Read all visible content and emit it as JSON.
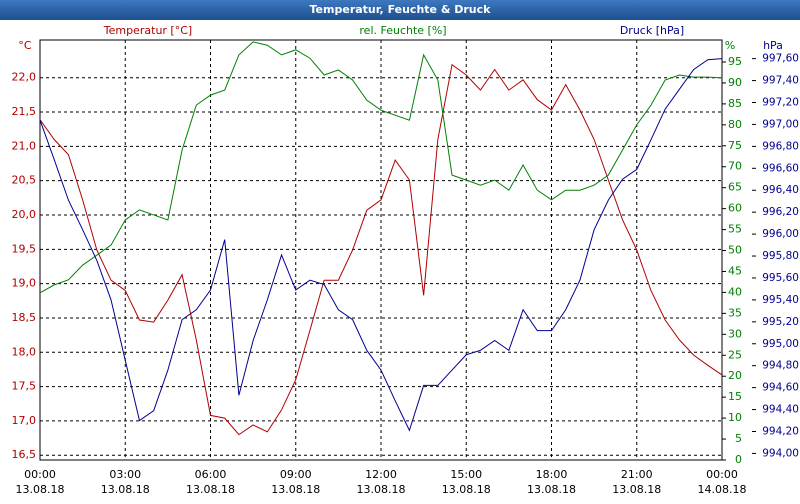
{
  "chart_data": {
    "type": "line",
    "title": "Temperatur, Feuchte & Druck",
    "y_unit": "°C",
    "y_label": "Temperatur [°C]",
    "y2_label": "rel. Feuchte [%]",
    "y2_unit": "%",
    "y3_label": "Druck [hPa]",
    "y3_unit": "hPa",
    "grid": true,
    "xlim": [
      0,
      24
    ],
    "xticks": [
      {
        "value": 0,
        "label": "00:00"
      },
      {
        "value": 3,
        "label": "03:00"
      },
      {
        "value": 6,
        "label": "06:00"
      },
      {
        "value": 9,
        "label": "09:00"
      },
      {
        "value": 12,
        "label": "12:00"
      },
      {
        "value": 15,
        "label": "15:00"
      },
      {
        "value": 18,
        "label": "18:00"
      },
      {
        "value": 21,
        "label": "21:00"
      },
      {
        "value": 24,
        "label": "00:00"
      }
    ],
    "xtick_dates": [
      "13.08.18",
      "13.08.18",
      "13.08.18",
      "13.08.18",
      "13.08.18",
      "13.08.18",
      "13.08.18",
      "13.08.18",
      "14.08.18"
    ],
    "ylim": [
      16.43,
      22.55
    ],
    "yticks": [
      {
        "value": 16.5,
        "label": "16,5"
      },
      {
        "value": 17,
        "label": "17,0"
      },
      {
        "value": 17.5,
        "label": "17,5"
      },
      {
        "value": 18,
        "label": "18,0"
      },
      {
        "value": 18.5,
        "label": "18,5"
      },
      {
        "value": 19,
        "label": "19,0"
      },
      {
        "value": 19.5,
        "label": "19,5"
      },
      {
        "value": 20,
        "label": "20,0"
      },
      {
        "value": 20.5,
        "label": "20,5"
      },
      {
        "value": 21,
        "label": "21,0"
      },
      {
        "value": 21.5,
        "label": "21,5"
      },
      {
        "value": 22,
        "label": "22,0"
      }
    ],
    "y2lim": [
      0,
      100.25
    ],
    "y2ticks": [
      0,
      5,
      10,
      15,
      20,
      25,
      30,
      35,
      40,
      45,
      50,
      55,
      60,
      65,
      70,
      75,
      80,
      85,
      90,
      95
    ],
    "y3lim": [
      993.94,
      997.77
    ],
    "y3ticks": [
      {
        "value": 994,
        "label": "994,00"
      },
      {
        "value": 994.2,
        "label": "994,20"
      },
      {
        "value": 994.4,
        "label": "994,40"
      },
      {
        "value": 994.6,
        "label": "994,60"
      },
      {
        "value": 994.8,
        "label": "994,80"
      },
      {
        "value": 995,
        "label": "995,00"
      },
      {
        "value": 995.2,
        "label": "995,20"
      },
      {
        "value": 995.4,
        "label": "995,40"
      },
      {
        "value": 995.6,
        "label": "995,60"
      },
      {
        "value": 995.8,
        "label": "995,80"
      },
      {
        "value": 996,
        "label": "996,00"
      },
      {
        "value": 996.2,
        "label": "996,20"
      },
      {
        "value": 996.4,
        "label": "996,40"
      },
      {
        "value": 996.6,
        "label": "996,60"
      },
      {
        "value": 996.8,
        "label": "996,80"
      },
      {
        "value": 997,
        "label": "997,00"
      },
      {
        "value": 997.2,
        "label": "997,20"
      },
      {
        "value": 997.4,
        "label": "997,40"
      },
      {
        "value": 997.6,
        "label": "997,60"
      }
    ],
    "x": [
      0,
      0.5,
      1,
      1.5,
      2,
      2.5,
      3,
      3.5,
      4,
      4.5,
      5,
      5.5,
      6,
      6.5,
      7,
      7.5,
      8,
      8.5,
      9,
      9.5,
      10,
      10.5,
      11,
      11.5,
      12,
      12.5,
      13,
      13.5,
      14,
      14.5,
      15,
      15.5,
      16,
      16.5,
      17,
      17.5,
      18,
      18.5,
      19,
      19.5,
      20,
      20.5,
      21,
      21.5,
      22,
      22.5,
      23,
      23.5,
      24
    ],
    "series": [
      {
        "axis": "y",
        "color": "#b00000",
        "values": [
          21.39,
          21.1,
          20.88,
          20.22,
          19.49,
          19.05,
          18.9,
          18.47,
          18.44,
          18.76,
          19.13,
          18.18,
          17.08,
          17.04,
          16.8,
          16.94,
          16.84,
          17.16,
          17.6,
          18.32,
          19.05,
          19.05,
          19.49,
          20.07,
          20.22,
          20.8,
          20.51,
          18.83,
          21.1,
          22.19,
          22.04,
          21.82,
          22.12,
          21.82,
          21.97,
          21.68,
          21.53,
          21.9,
          21.53,
          21.1,
          20.51,
          19.93,
          19.49,
          18.9,
          18.47,
          18.18,
          17.96,
          17.81,
          17.67
        ]
      },
      {
        "axis": "y2",
        "color": "#008000",
        "values": [
          39.9,
          41.8,
          43,
          46.5,
          48.9,
          51.3,
          57.3,
          59.7,
          58.5,
          57.3,
          74,
          84.7,
          87.1,
          88.3,
          96.7,
          99.8,
          99,
          96.7,
          97.9,
          95.9,
          91.9,
          93.1,
          90.7,
          85.9,
          83.5,
          82.3,
          81.1,
          96.7,
          90.7,
          68,
          66.8,
          65.6,
          66.8,
          64.4,
          70.4,
          64.4,
          62.1,
          64.4,
          64.4,
          65.6,
          68,
          74,
          80,
          84.7,
          90.7,
          91.9,
          91.4,
          91.4,
          91.2
        ]
      },
      {
        "axis": "y3",
        "color": "#000090",
        "values": [
          997.04,
          996.68,
          996.31,
          996.04,
          995.76,
          995.4,
          994.85,
          994.3,
          994.39,
          994.76,
          995.22,
          995.31,
          995.49,
          995.95,
          994.53,
          995.03,
          995.4,
          995.81,
          995.49,
          995.58,
          995.54,
          995.31,
          995.22,
          994.94,
          994.76,
          994.48,
          994.21,
          994.62,
          994.62,
          994.76,
          994.9,
          994.94,
          995.03,
          994.94,
          995.31,
          995.12,
          995.12,
          995.31,
          995.58,
          996.04,
          996.31,
          996.5,
          996.59,
          996.86,
          997.14,
          997.32,
          997.5,
          997.59,
          997.6
        ]
      }
    ]
  }
}
